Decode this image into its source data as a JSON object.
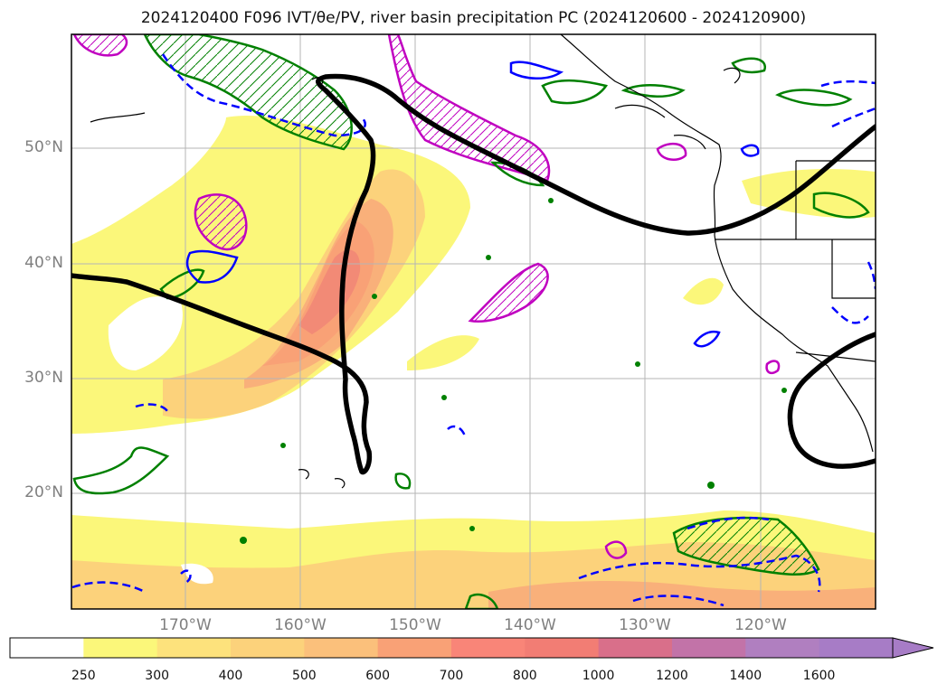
{
  "title": "2024120400 F096 IVT/θe/PV, river basin precipitation PC (2024120600 - 2024120900)",
  "map": {
    "latitude_labels": [
      "50°N",
      "40°N",
      "30°N",
      "20°N"
    ],
    "longitude_labels": [
      "170°W",
      "160°W",
      "150°W",
      "140°W",
      "130°W",
      "120°W"
    ],
    "colors": {
      "ivt_light": "#fbf77a",
      "ivt_mid": "#fcd27b",
      "ivt_high": "#f9a176",
      "ivt_peak": "#f27d74",
      "pv_contour": "#000000",
      "theta_e_hatch": "#c000c0",
      "green_contour": "#008000",
      "blue_dashed": "#0000ff",
      "coastline": "#000000",
      "gridline": "#b5b5b5"
    }
  },
  "colorbar": {
    "labels": [
      "250",
      "300",
      "400",
      "500",
      "600",
      "700",
      "800",
      "1000",
      "1200",
      "1400",
      "1600"
    ],
    "colors": [
      "#ffffff",
      "#fbf77a",
      "#fde27c",
      "#fcd27b",
      "#fbc07b",
      "#f9a176",
      "#f98578",
      "#f27d74",
      "#d96f8a",
      "#c273a8",
      "#b07fc0",
      "#a77cc6"
    ]
  }
}
